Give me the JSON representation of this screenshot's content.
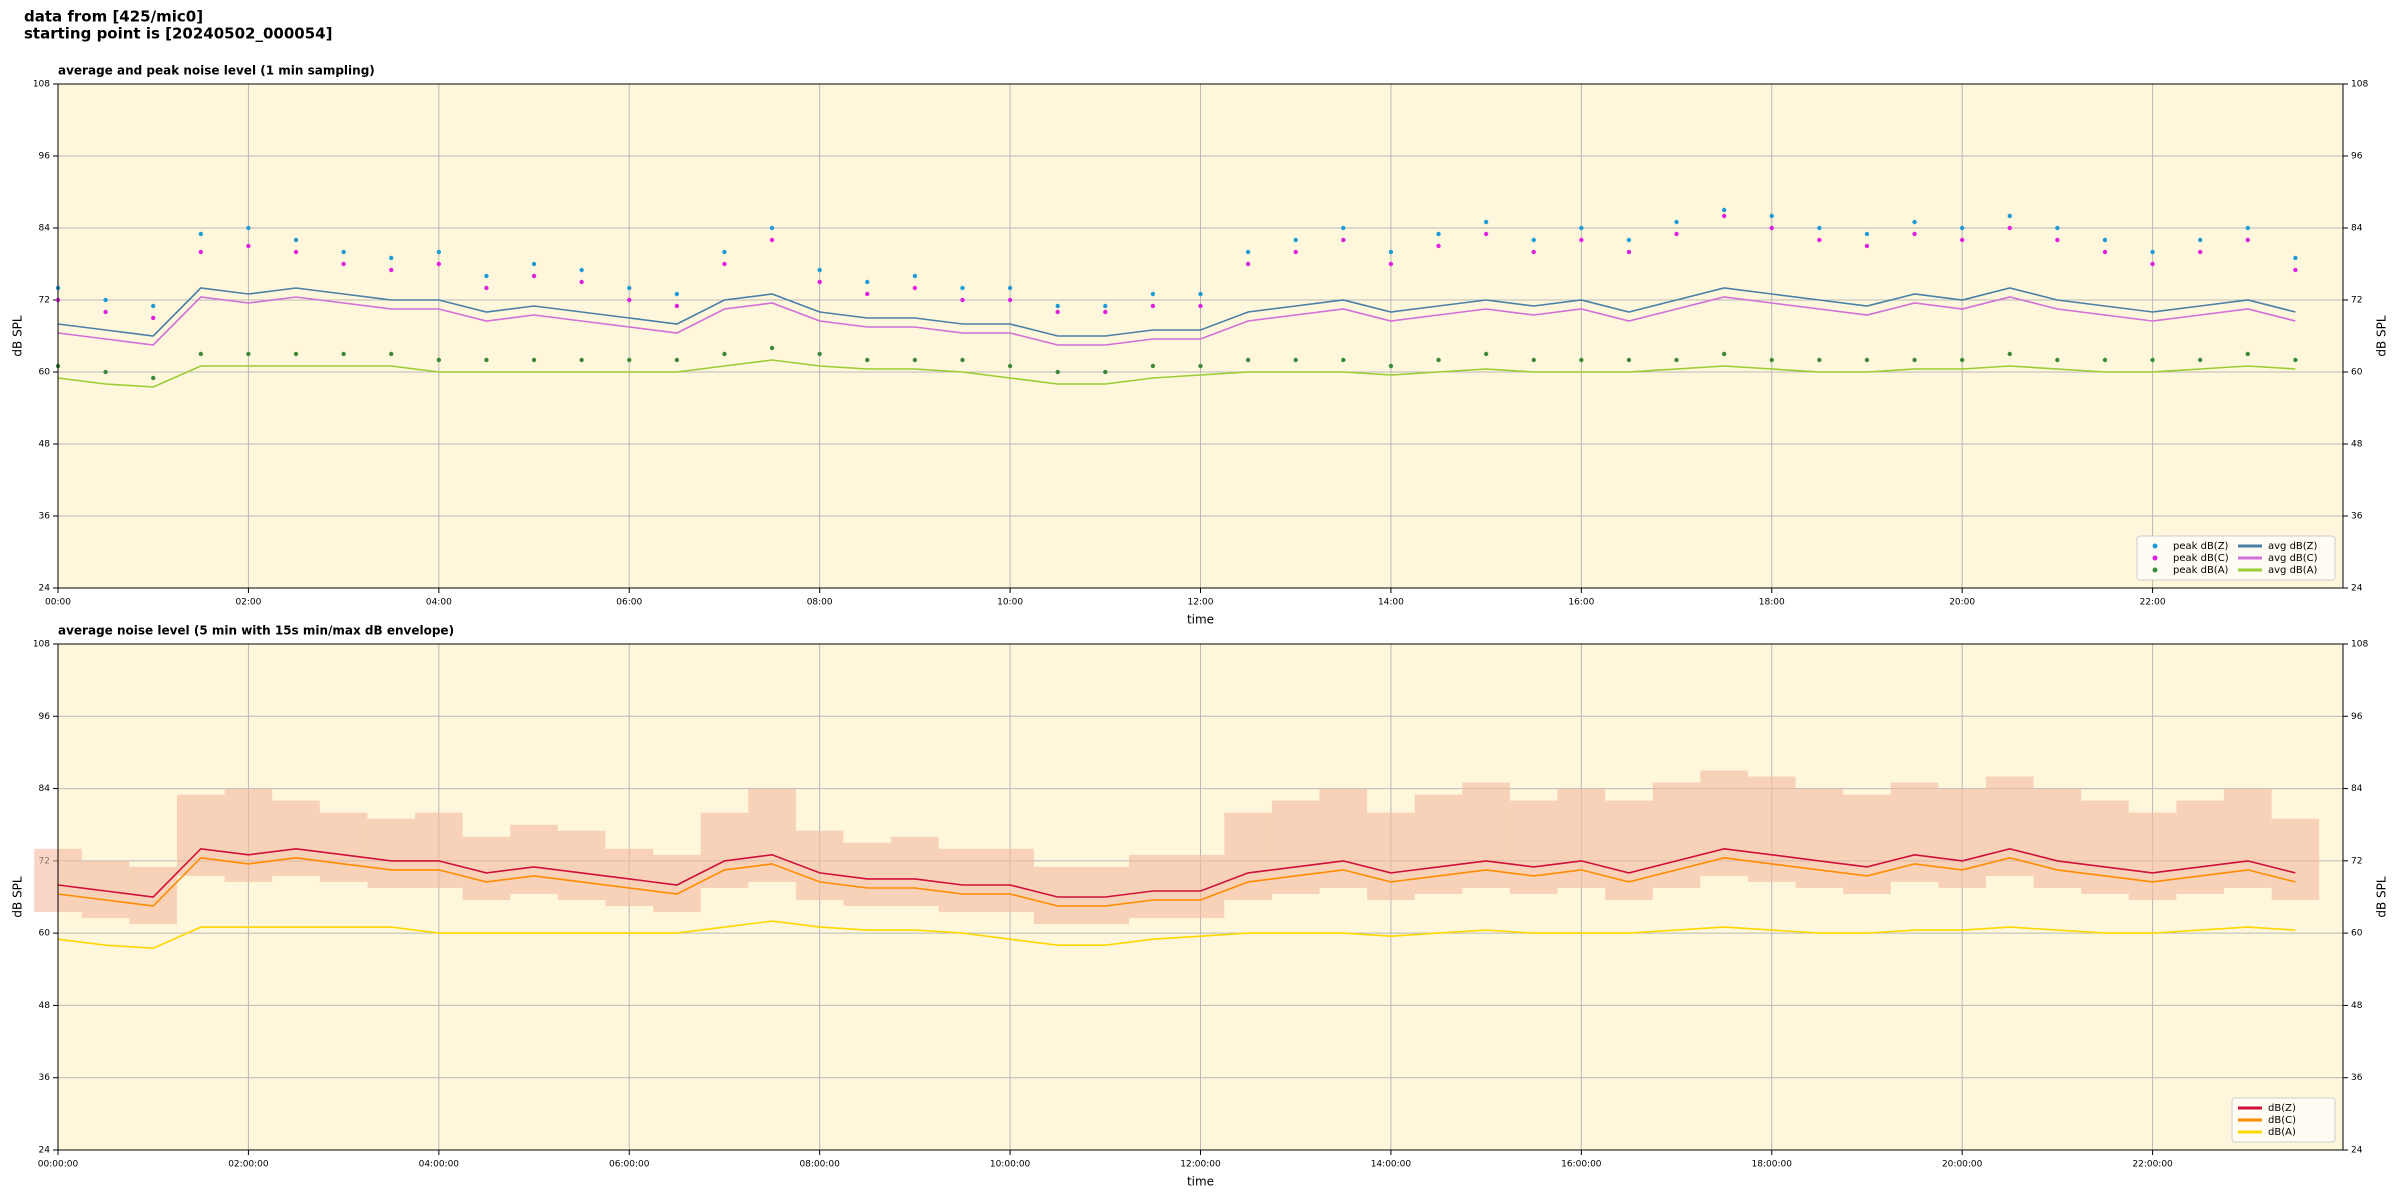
{
  "header": {
    "lines": [
      "data from [425/mic0]",
      "starting point is [20240502_000054]"
    ]
  },
  "chart_data": [
    {
      "type": "line",
      "title": "average and peak noise level (1 min sampling)",
      "x_label": "time",
      "y_label": "dB SPL",
      "background": "#fff7db",
      "grid": true,
      "legend": "lower right",
      "legend_columns": 2,
      "xlim": [
        0,
        24
      ],
      "xticks": [
        {
          "value": 0,
          "label": "00:00"
        },
        {
          "value": 2,
          "label": "02:00"
        },
        {
          "value": 4,
          "label": "04:00"
        },
        {
          "value": 6,
          "label": "06:00"
        },
        {
          "value": 8,
          "label": "08:00"
        },
        {
          "value": 10,
          "label": "10:00"
        },
        {
          "value": 12,
          "label": "12:00"
        },
        {
          "value": 14,
          "label": "14:00"
        },
        {
          "value": 16,
          "label": "16:00"
        },
        {
          "value": 18,
          "label": "18:00"
        },
        {
          "value": 20,
          "label": "20:00"
        },
        {
          "value": 22,
          "label": "22:00"
        }
      ],
      "ylim": [
        24,
        108
      ],
      "yticks": [
        24,
        36,
        48,
        60,
        72,
        84,
        96,
        108
      ],
      "x": [
        0,
        0.5,
        1,
        1.5,
        2,
        2.5,
        3,
        3.5,
        4,
        4.5,
        5,
        5.5,
        6,
        6.5,
        7,
        7.5,
        8,
        8.5,
        9,
        9.5,
        10,
        10.5,
        11,
        11.5,
        12,
        12.5,
        13,
        13.5,
        14,
        14.5,
        15,
        15.5,
        16,
        16.5,
        17,
        17.5,
        18,
        18.5,
        19,
        19.5,
        20,
        20.5,
        21,
        21.5,
        22,
        22.5,
        23,
        23.5
      ],
      "series": [
        {
          "name": "peak dB(Z)",
          "color": "#1f9bd8",
          "mode": "markers",
          "values": [
            74,
            72,
            71,
            83,
            84,
            82,
            80,
            79,
            80,
            76,
            78,
            77,
            74,
            73,
            80,
            84,
            77,
            75,
            76,
            74,
            74,
            71,
            71,
            73,
            73,
            80,
            82,
            84,
            80,
            83,
            85,
            82,
            84,
            82,
            85,
            87,
            86,
            84,
            83,
            85,
            84,
            86,
            84,
            82,
            80,
            82,
            84,
            79
          ]
        },
        {
          "name": "peak dB(C)",
          "color": "#e020e0",
          "mode": "markers",
          "values": [
            72,
            70,
            69,
            80,
            81,
            80,
            78,
            77,
            78,
            74,
            76,
            75,
            72,
            71,
            78,
            82,
            75,
            73,
            74,
            72,
            72,
            70,
            70,
            71,
            71,
            78,
            80,
            82,
            78,
            81,
            83,
            80,
            82,
            80,
            83,
            86,
            84,
            82,
            81,
            83,
            82,
            84,
            82,
            80,
            78,
            80,
            82,
            77
          ]
        },
        {
          "name": "peak dB(A)",
          "color": "#3a8a3a",
          "mode": "markers",
          "values": [
            61,
            60,
            59,
            63,
            63,
            63,
            63,
            63,
            62,
            62,
            62,
            62,
            62,
            62,
            63,
            64,
            63,
            62,
            62,
            62,
            61,
            60,
            60,
            61,
            61,
            62,
            62,
            62,
            61,
            62,
            63,
            62,
            62,
            62,
            62,
            63,
            62,
            62,
            62,
            62,
            62,
            63,
            62,
            62,
            62,
            62,
            63,
            62
          ]
        },
        {
          "name": "avg dB(Z)",
          "color": "#4a7fa8",
          "mode": "line",
          "values": [
            68,
            67,
            66,
            74,
            73,
            74,
            73,
            72,
            72,
            70,
            71,
            70,
            69,
            68,
            72,
            73,
            70,
            69,
            69,
            68,
            68,
            66,
            66,
            67,
            67,
            70,
            71,
            72,
            70,
            71,
            72,
            71,
            72,
            70,
            72,
            74,
            73,
            72,
            71,
            73,
            72,
            74,
            72,
            71,
            70,
            71,
            72,
            70
          ]
        },
        {
          "name": "avg dB(C)",
          "color": "#d070d8",
          "mode": "line",
          "values": [
            66.5,
            65.5,
            64.5,
            72.5,
            71.5,
            72.5,
            71.5,
            70.5,
            70.5,
            68.5,
            69.5,
            68.5,
            67.5,
            66.5,
            70.5,
            71.5,
            68.5,
            67.5,
            67.5,
            66.5,
            66.5,
            64.5,
            64.5,
            65.5,
            65.5,
            68.5,
            69.5,
            70.5,
            68.5,
            69.5,
            70.5,
            69.5,
            70.5,
            68.5,
            70.5,
            72.5,
            71.5,
            70.5,
            69.5,
            71.5,
            70.5,
            72.5,
            70.5,
            69.5,
            68.5,
            69.5,
            70.5,
            68.5
          ]
        },
        {
          "name": "avg dB(A)",
          "color": "#9acd32",
          "mode": "line",
          "values": [
            59,
            58,
            57.5,
            61,
            61,
            61,
            61,
            61,
            60,
            60,
            60,
            60,
            60,
            60,
            61,
            62,
            61,
            60.5,
            60.5,
            60,
            59,
            58,
            58,
            59,
            59.5,
            60,
            60,
            60,
            59.5,
            60,
            60.5,
            60,
            60,
            60,
            60.5,
            61,
            60.5,
            60,
            60,
            60.5,
            60.5,
            61,
            60.5,
            60,
            60,
            60.5,
            61,
            60.5
          ]
        }
      ]
    },
    {
      "type": "line",
      "title": "average noise level (5 min with 15s min/max dB envelope)",
      "x_label": "time",
      "y_label": "dB SPL",
      "background": "#fff7db",
      "grid": true,
      "legend": "lower right",
      "legend_columns": 1,
      "xlim": [
        0,
        24
      ],
      "xticks": [
        {
          "value": 0,
          "label": "00:00:00"
        },
        {
          "value": 2,
          "label": "02:00:00"
        },
        {
          "value": 4,
          "label": "04:00:00"
        },
        {
          "value": 6,
          "label": "06:00:00"
        },
        {
          "value": 8,
          "label": "08:00:00"
        },
        {
          "value": 10,
          "label": "10:00:00"
        },
        {
          "value": 12,
          "label": "12:00:00"
        },
        {
          "value": 14,
          "label": "14:00:00"
        },
        {
          "value": 16,
          "label": "16:00:00"
        },
        {
          "value": 18,
          "label": "18:00:00"
        },
        {
          "value": 20,
          "label": "20:00:00"
        },
        {
          "value": 22,
          "label": "22:00:00"
        }
      ],
      "ylim": [
        24,
        108
      ],
      "yticks": [
        24,
        36,
        48,
        60,
        72,
        84,
        96,
        108
      ],
      "x": [
        0,
        0.5,
        1,
        1.5,
        2,
        2.5,
        3,
        3.5,
        4,
        4.5,
        5,
        5.5,
        6,
        6.5,
        7,
        7.5,
        8,
        8.5,
        9,
        9.5,
        10,
        10.5,
        11,
        11.5,
        12,
        12.5,
        13,
        13.5,
        14,
        14.5,
        15,
        15.5,
        16,
        16.5,
        17,
        17.5,
        18,
        18.5,
        19,
        19.5,
        20,
        20.5,
        21,
        21.5,
        22,
        22.5,
        23,
        23.5
      ],
      "envelope": {
        "color": "#f4b9a0",
        "min": [
          63.5,
          62.5,
          61.5,
          69.5,
          68.5,
          69.5,
          68.5,
          67.5,
          67.5,
          65.5,
          66.5,
          65.5,
          64.5,
          63.5,
          67.5,
          68.5,
          65.5,
          64.5,
          64.5,
          63.5,
          63.5,
          61.5,
          61.5,
          62.5,
          62.5,
          65.5,
          66.5,
          67.5,
          65.5,
          66.5,
          67.5,
          66.5,
          67.5,
          65.5,
          67.5,
          69.5,
          68.5,
          67.5,
          66.5,
          68.5,
          67.5,
          69.5,
          67.5,
          66.5,
          65.5,
          66.5,
          67.5,
          65.5
        ],
        "max": [
          74,
          72,
          71,
          83,
          84,
          82,
          80,
          79,
          80,
          76,
          78,
          77,
          74,
          73,
          80,
          84,
          77,
          75,
          76,
          74,
          74,
          71,
          71,
          73,
          73,
          80,
          82,
          84,
          80,
          83,
          85,
          82,
          84,
          82,
          85,
          87,
          86,
          84,
          83,
          85,
          84,
          86,
          84,
          82,
          80,
          82,
          84,
          79
        ]
      },
      "series": [
        {
          "name": "dB(Z)",
          "color": "#d0103a",
          "mode": "line",
          "values": [
            68,
            67,
            66,
            74,
            73,
            74,
            73,
            72,
            72,
            70,
            71,
            70,
            69,
            68,
            72,
            73,
            70,
            69,
            69,
            68,
            68,
            66,
            66,
            67,
            67,
            70,
            71,
            72,
            70,
            71,
            72,
            71,
            72,
            70,
            72,
            74,
            73,
            72,
            71,
            73,
            72,
            74,
            72,
            71,
            70,
            71,
            72,
            70
          ]
        },
        {
          "name": "dB(C)",
          "color": "#ff8c00",
          "mode": "line",
          "values": [
            66.5,
            65.5,
            64.5,
            72.5,
            71.5,
            72.5,
            71.5,
            70.5,
            70.5,
            68.5,
            69.5,
            68.5,
            67.5,
            66.5,
            70.5,
            71.5,
            68.5,
            67.5,
            67.5,
            66.5,
            66.5,
            64.5,
            64.5,
            65.5,
            65.5,
            68.5,
            69.5,
            70.5,
            68.5,
            69.5,
            70.5,
            69.5,
            70.5,
            68.5,
            70.5,
            72.5,
            71.5,
            70.5,
            69.5,
            71.5,
            70.5,
            72.5,
            70.5,
            69.5,
            68.5,
            69.5,
            70.5,
            68.5
          ]
        },
        {
          "name": "dB(A)",
          "color": "#ffd700",
          "mode": "line",
          "values": [
            59,
            58,
            57.5,
            61,
            61,
            61,
            61,
            61,
            60,
            60,
            60,
            60,
            60,
            60,
            61,
            62,
            61,
            60.5,
            60.5,
            60,
            59,
            58,
            58,
            59,
            59.5,
            60,
            60,
            60,
            59.5,
            60,
            60.5,
            60,
            60,
            60,
            60.5,
            61,
            60.5,
            60,
            60,
            60.5,
            60.5,
            61,
            60.5,
            60,
            60,
            60.5,
            61,
            60.5
          ]
        }
      ]
    }
  ]
}
